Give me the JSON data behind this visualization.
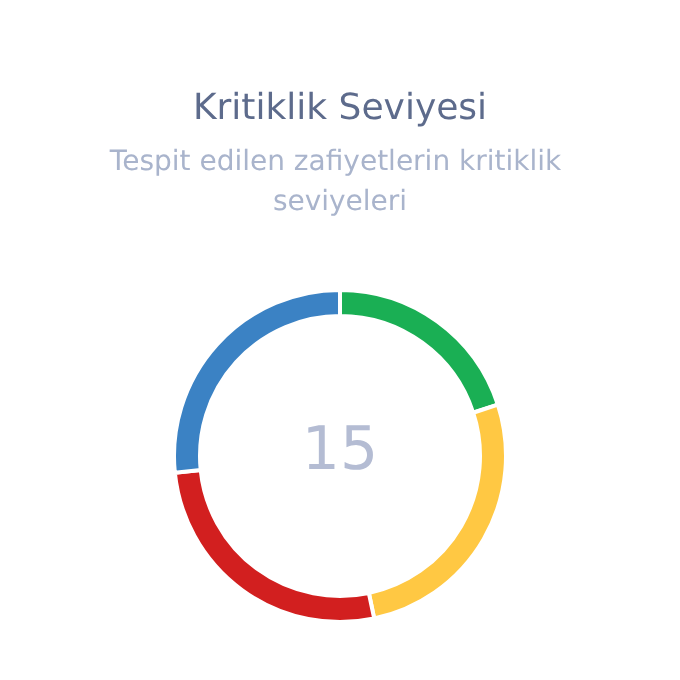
{
  "chart_data": {
    "type": "donut",
    "title": "Kritiklik Seviyesi",
    "subtitle": "Tespit edilen zafiyetlerin kritiklik seviyeleri",
    "categories": [
      null,
      null,
      null,
      null
    ],
    "values": [
      20,
      26.7,
      26.7,
      26.6
    ],
    "colors": [
      "#1aaf54",
      "#ffc843",
      "#d21f1f",
      "#3b82c4"
    ],
    "annotations": [
      "15"
    ]
  }
}
